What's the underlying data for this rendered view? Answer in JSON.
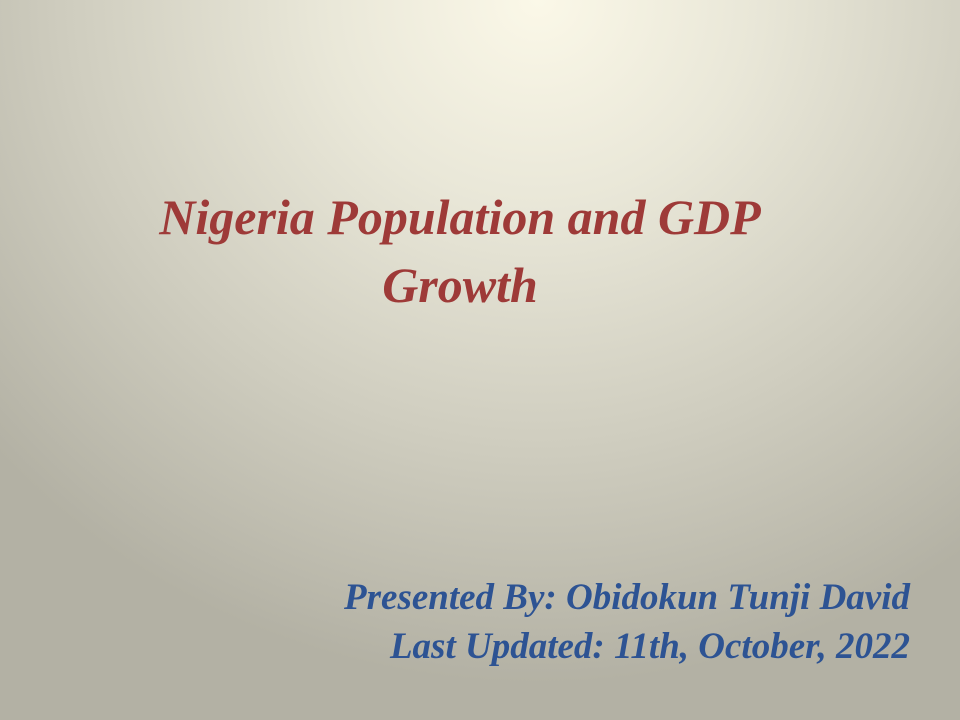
{
  "slide": {
    "title_lines": [
      "Nigeria Population and GDP",
      "Growth"
    ],
    "subtitle_lines": [
      "Presented By: Obidokun Tunji David",
      "Last Updated: 11th, October, 2022"
    ],
    "colors": {
      "title": "#9e3a38",
      "subtitle": "#2d5393",
      "background_center": "#fbf8e8",
      "background_edge": "#b3b1a4"
    }
  }
}
